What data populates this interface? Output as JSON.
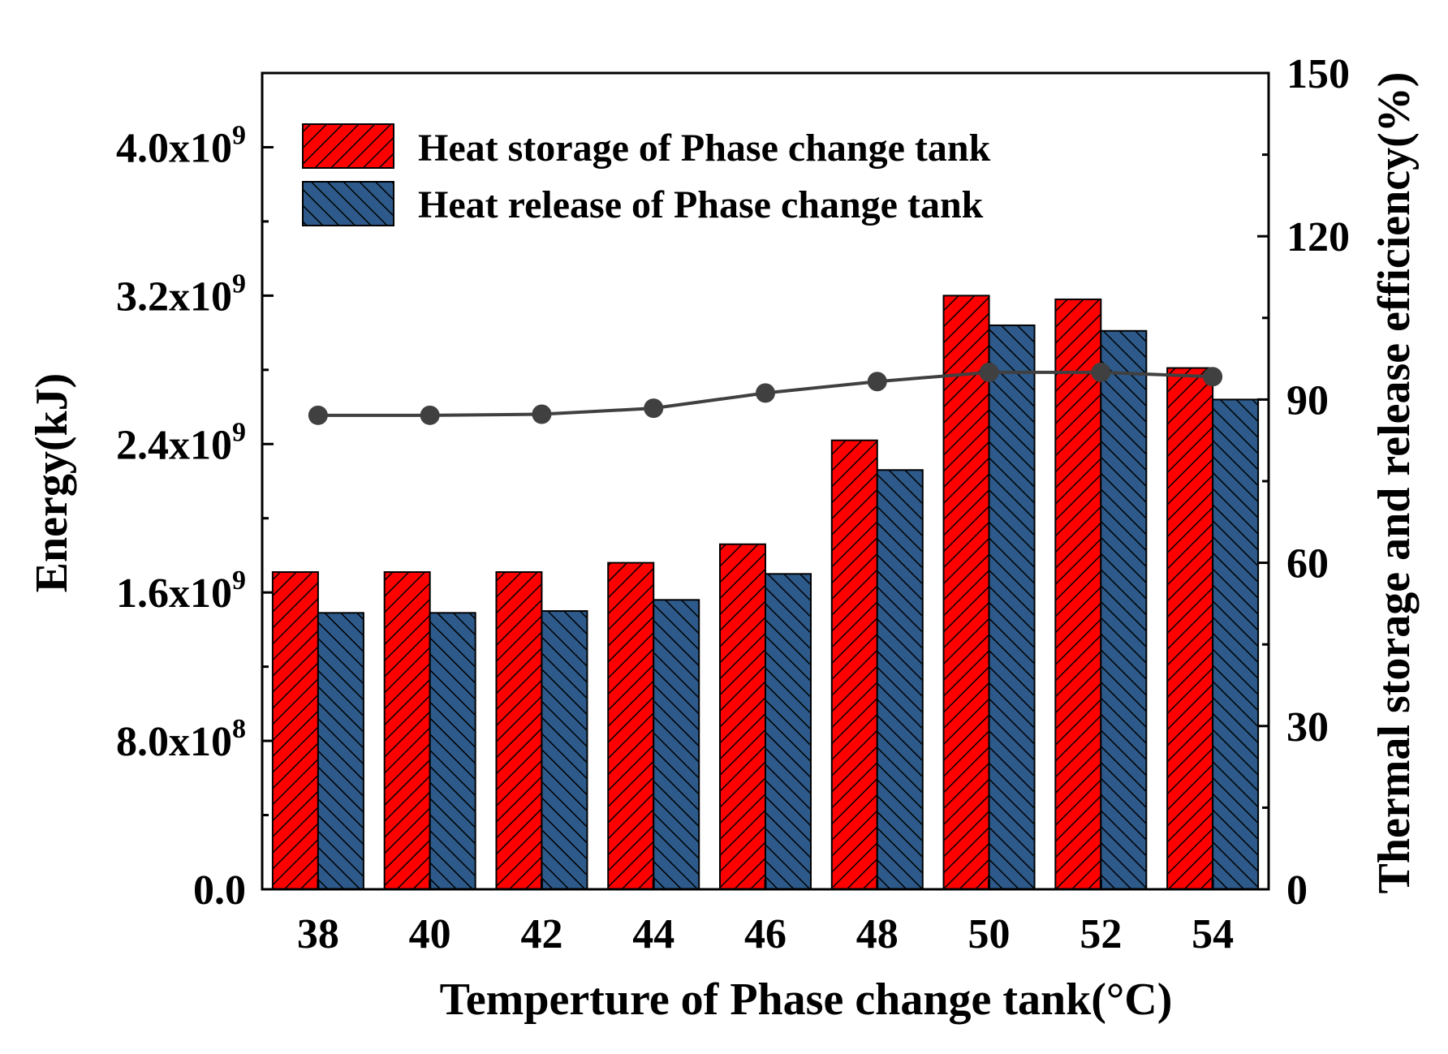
{
  "chart_data": {
    "type": "bar",
    "categories": [
      "38",
      "40",
      "42",
      "44",
      "46",
      "48",
      "50",
      "52",
      "54"
    ],
    "series": [
      {
        "name": "Heat storage of Phase change tank",
        "color": "#ff0000",
        "values": [
          1710000000.0,
          1710000000.0,
          1710000000.0,
          1760000000.0,
          1860000000.0,
          2420000000.0,
          3200000000.0,
          3180000000.0,
          2810000000.0
        ]
      },
      {
        "name": "Heat release of Phase change tank",
        "color": "#2d5a8a",
        "values": [
          1490000000.0,
          1490000000.0,
          1500000000.0,
          1560000000.0,
          1700000000.0,
          2260000000.0,
          3040000000.0,
          3010000000.0,
          2640000000.0
        ]
      }
    ],
    "line_series": {
      "name": "Thermal storage and release efficiency",
      "axis": "right",
      "color": "#404040",
      "values": [
        87.1,
        87.1,
        87.3,
        88.4,
        91.2,
        93.3,
        95.0,
        95.0,
        94.2
      ]
    },
    "xlabel": "Temperture of Phase change tank(°C)",
    "ylabel": "Energy(kJ)",
    "y2label": "Thermal storage and  release efficiency(%)",
    "ylim": [
      0,
      4400000000.0
    ],
    "y2lim": [
      0,
      150
    ],
    "yticks": [
      {
        "value": 0,
        "mantissa": "0.0",
        "exp": ""
      },
      {
        "value": 800000000.0,
        "mantissa": "8.0x10",
        "exp": "8"
      },
      {
        "value": 1600000000.0,
        "mantissa": "1.6x10",
        "exp": "9"
      },
      {
        "value": 2400000000.0,
        "mantissa": "2.4x10",
        "exp": "9"
      },
      {
        "value": 3200000000.0,
        "mantissa": "3.2x10",
        "exp": "9"
      },
      {
        "value": 4000000000.0,
        "mantissa": "4.0x10",
        "exp": "9"
      }
    ],
    "y2ticks": [
      0,
      30,
      60,
      90,
      120,
      150
    ],
    "legend_position": "top-left"
  }
}
